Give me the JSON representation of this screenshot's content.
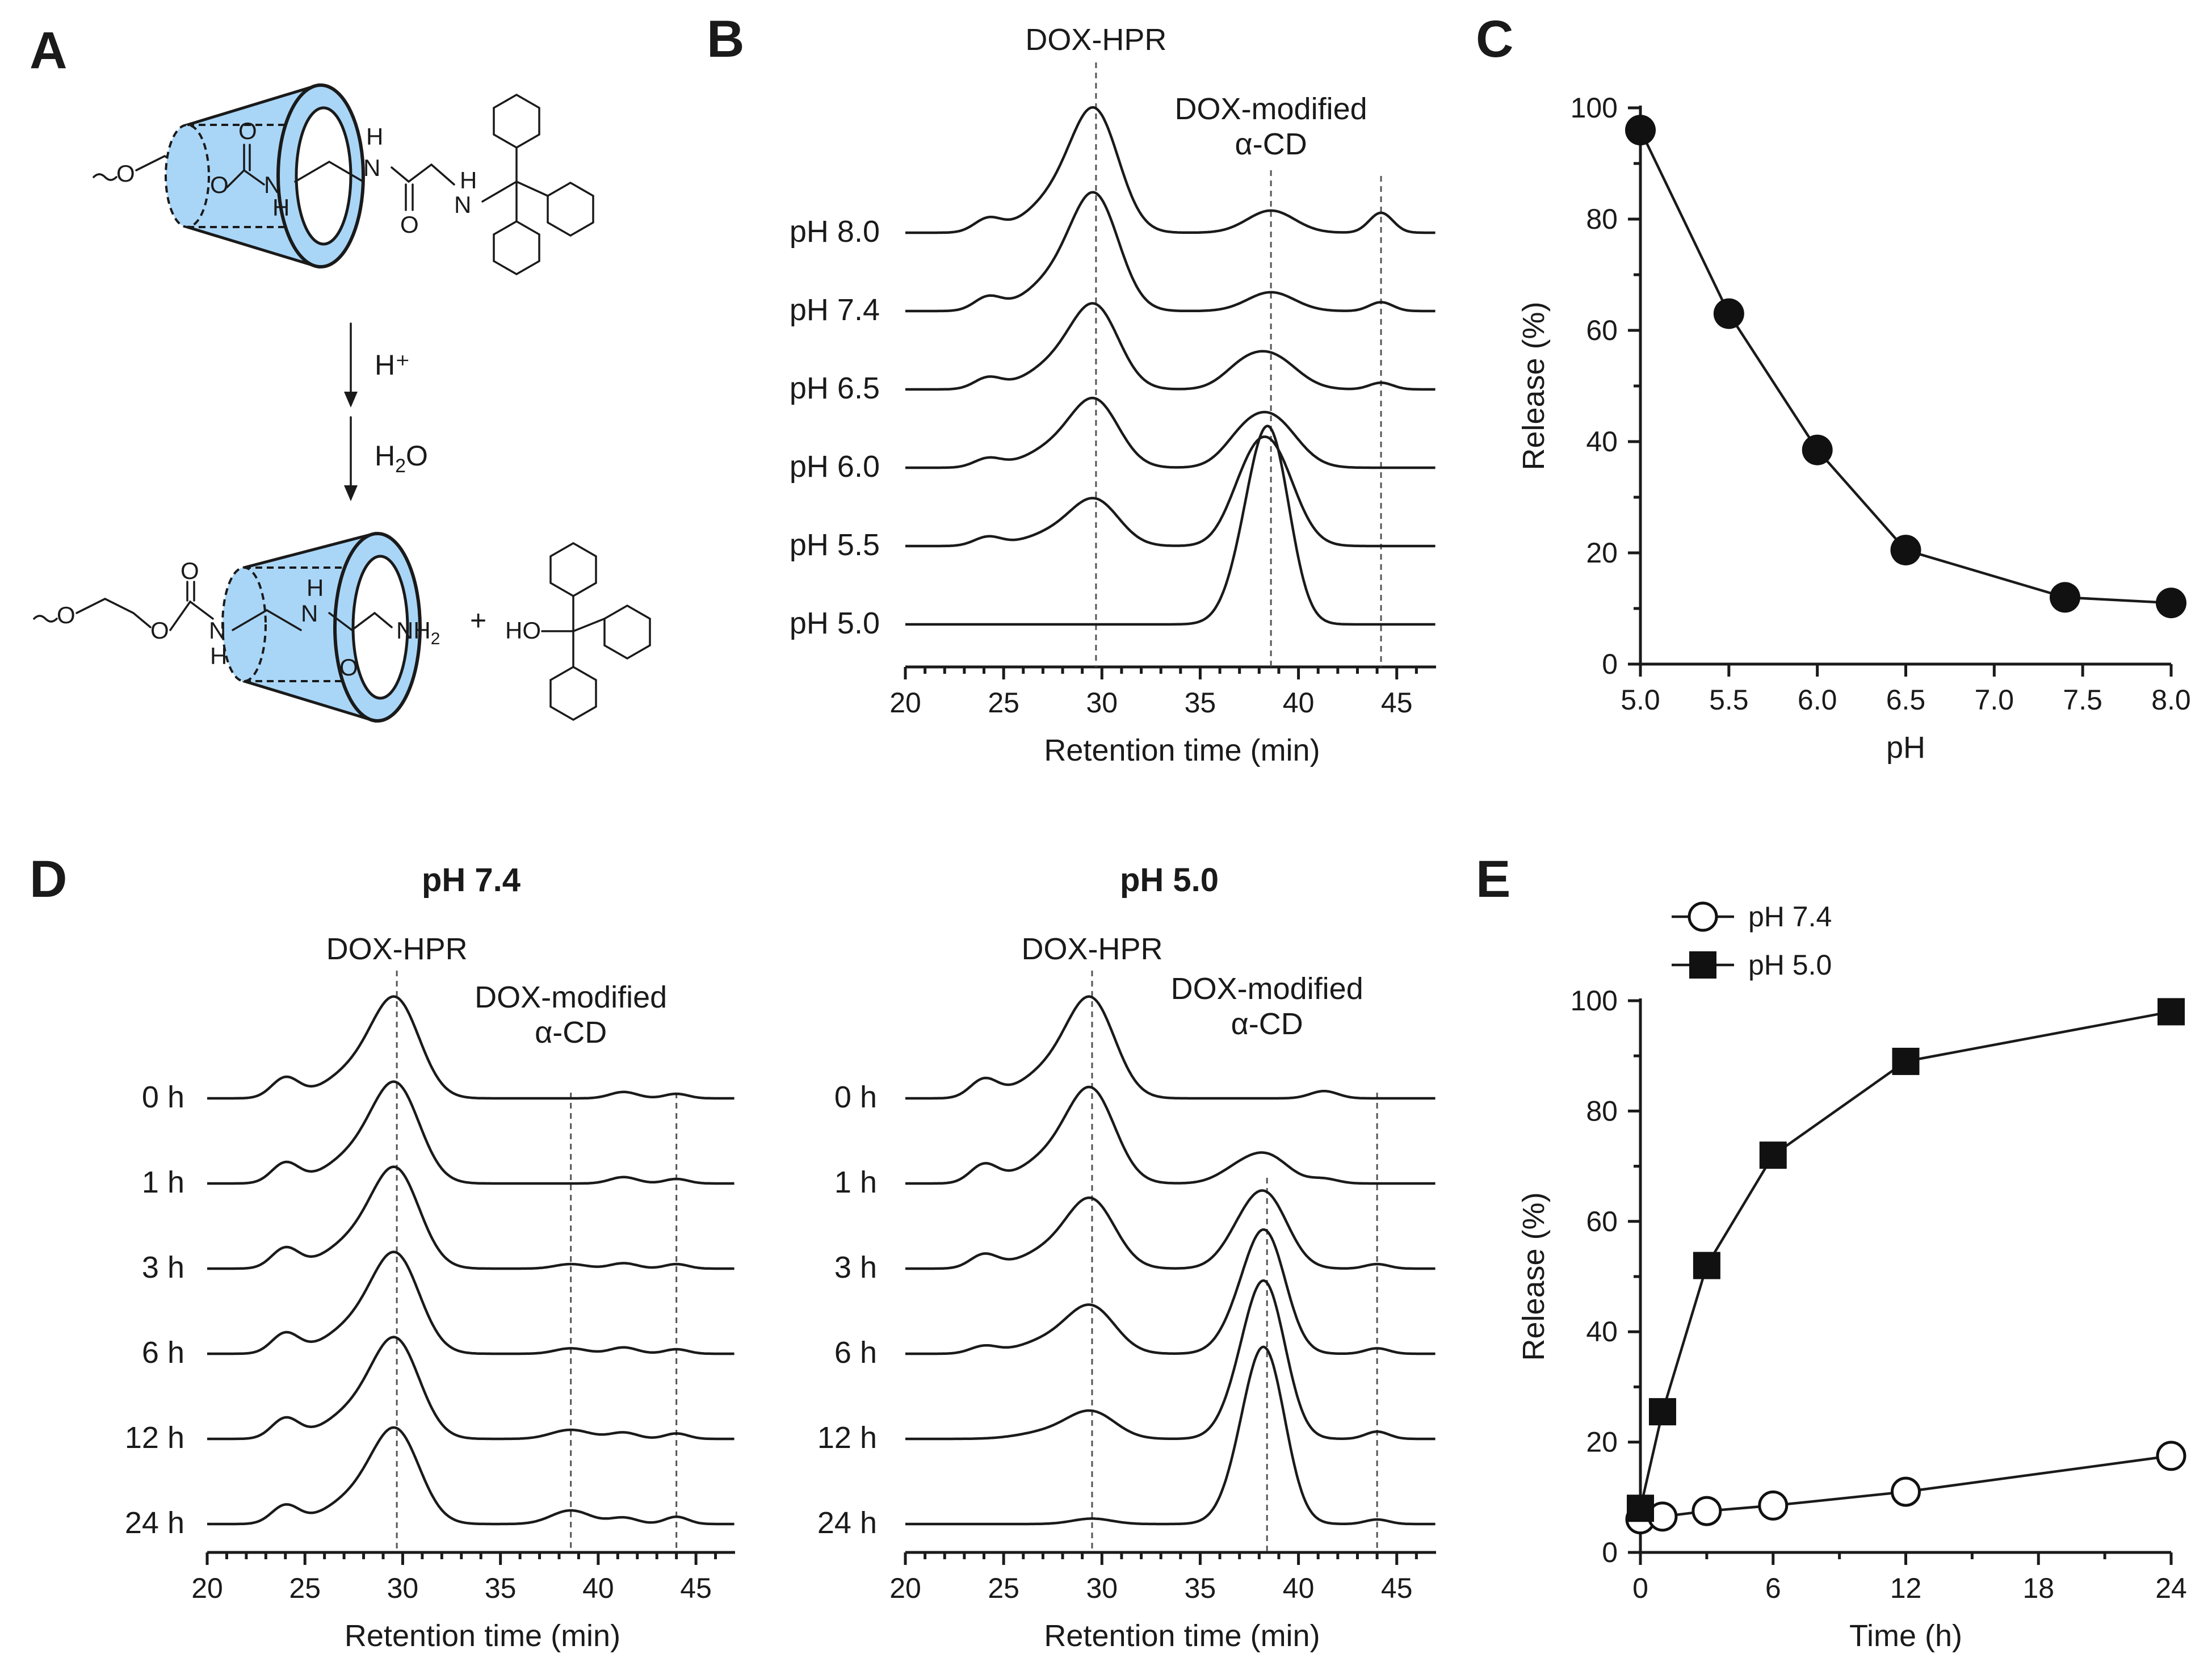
{
  "panels": {
    "A": {
      "letter": "A",
      "reagent1": "H⁺",
      "reagent2_main": "H",
      "reagent2_sub": "2",
      "reagent2_end": "O",
      "plus": "+",
      "top_molecule": {
        "atoms": [
          "O",
          "O",
          "O",
          "N",
          "H",
          "H",
          "N",
          "O",
          "N",
          "H"
        ]
      },
      "bottom_molecule": {
        "atoms": [
          "O",
          "O",
          "O",
          "N",
          "H",
          "N",
          "H",
          "O",
          "N",
          "H",
          "2"
        ]
      },
      "trityl_alcohol": {
        "label": "HO"
      }
    },
    "B": {
      "letter": "B"
    },
    "C": {
      "letter": "C"
    },
    "D": {
      "letter": "D",
      "title_left": "pH 7.4",
      "title_right": "pH 5.0"
    },
    "E": {
      "letter": "E"
    }
  },
  "chart_data": [
    {
      "id": "B",
      "type": "line",
      "subtype": "chromatogram-stack",
      "xlabel": "Retention time (min)",
      "xlim": [
        20,
        47
      ],
      "xticks": [
        20,
        25,
        30,
        35,
        40,
        45
      ],
      "peak_labels": [
        {
          "text": "DOX-HPR",
          "x": 29.7
        },
        {
          "text": "DOX-modified",
          "text2": "α-CD",
          "x": 38.6
        }
      ],
      "ref_lines": [
        29.7,
        38.6,
        44.2
      ],
      "traces": [
        {
          "name": "pH 8.0",
          "peaks": [
            [
              24.2,
              0.12,
              0.7
            ],
            [
              29.7,
              1.0,
              1.2
            ],
            [
              27.7,
              0.3,
              1.5
            ],
            [
              38.6,
              0.2,
              1.2
            ],
            [
              44.2,
              0.18,
              0.6
            ]
          ]
        },
        {
          "name": "pH 7.4",
          "peaks": [
            [
              24.2,
              0.12,
              0.7
            ],
            [
              29.7,
              0.95,
              1.2
            ],
            [
              27.7,
              0.28,
              1.5
            ],
            [
              38.6,
              0.17,
              1.2
            ],
            [
              44.2,
              0.08,
              0.6
            ]
          ]
        },
        {
          "name": "pH 6.5",
          "peaks": [
            [
              24.2,
              0.1,
              0.7
            ],
            [
              29.7,
              0.68,
              1.2
            ],
            [
              27.7,
              0.22,
              1.5
            ],
            [
              38.6,
              0.3,
              1.3
            ],
            [
              37.0,
              0.12,
              1.0
            ],
            [
              44.2,
              0.06,
              0.6
            ]
          ]
        },
        {
          "name": "pH 6.0",
          "peaks": [
            [
              24.2,
              0.08,
              0.7
            ],
            [
              29.7,
              0.55,
              1.2
            ],
            [
              27.7,
              0.18,
              1.5
            ],
            [
              38.6,
              0.45,
              1.3
            ],
            [
              37.0,
              0.15,
              1.0
            ]
          ]
        },
        {
          "name": "pH 5.5",
          "peaks": [
            [
              24.2,
              0.08,
              0.7
            ],
            [
              29.7,
              0.38,
              1.2
            ],
            [
              27.7,
              0.12,
              1.5
            ],
            [
              38.6,
              0.85,
              1.2
            ],
            [
              37.2,
              0.3,
              1.0
            ]
          ]
        },
        {
          "name": "pH 5.0",
          "peaks": [
            [
              38.6,
              1.55,
              1.0
            ],
            [
              37.4,
              0.45,
              1.0
            ]
          ]
        }
      ]
    },
    {
      "id": "C",
      "type": "line",
      "xlabel": "pH",
      "ylabel": "Release (%)",
      "xlim": [
        5.0,
        8.0
      ],
      "ylim": [
        0,
        100
      ],
      "xticks": [
        5.0,
        5.5,
        6.0,
        6.5,
        7.0,
        7.5,
        8.0
      ],
      "xtick_labels": [
        "5.0",
        "5.5",
        "6.0",
        "6.5",
        "7.0",
        "7.5",
        "8.0"
      ],
      "yticks": [
        0,
        20,
        40,
        60,
        80,
        100
      ],
      "series": [
        {
          "name": "Release",
          "x": [
            5.0,
            5.5,
            6.0,
            6.5,
            7.4,
            8.0
          ],
          "values": [
            96,
            63,
            38.5,
            20.5,
            12,
            11
          ]
        }
      ]
    },
    {
      "id": "D-left",
      "type": "line",
      "subtype": "chromatogram-stack",
      "title": "pH 7.4",
      "xlabel": "Retention time (min)",
      "xlim": [
        20,
        47
      ],
      "xticks": [
        20,
        25,
        30,
        35,
        40,
        45
      ],
      "peak_labels": [
        {
          "text": "DOX-HPR",
          "x": 29.7
        },
        {
          "text": "DOX-modified",
          "text2": "α-CD",
          "x": 38.6
        }
      ],
      "ref_lines": [
        29.7,
        38.6,
        44.0
      ],
      "traces": [
        {
          "name": "0 h",
          "peaks": [
            [
              24.0,
              0.22,
              0.7
            ],
            [
              29.7,
              1.0,
              1.2
            ],
            [
              27.6,
              0.3,
              1.5
            ],
            [
              41.3,
              0.07,
              0.7
            ],
            [
              44.0,
              0.05,
              0.6
            ]
          ]
        },
        {
          "name": "1 h",
          "peaks": [
            [
              24.0,
              0.22,
              0.7
            ],
            [
              29.7,
              1.0,
              1.2
            ],
            [
              27.6,
              0.3,
              1.5
            ],
            [
              41.3,
              0.07,
              0.7
            ],
            [
              44.0,
              0.05,
              0.6
            ]
          ]
        },
        {
          "name": "3 h",
          "peaks": [
            [
              24.0,
              0.22,
              0.7
            ],
            [
              29.7,
              1.0,
              1.2
            ],
            [
              27.6,
              0.3,
              1.5
            ],
            [
              38.6,
              0.05,
              0.8
            ],
            [
              41.3,
              0.06,
              0.7
            ],
            [
              44.0,
              0.05,
              0.6
            ]
          ]
        },
        {
          "name": "6 h",
          "peaks": [
            [
              24.0,
              0.22,
              0.7
            ],
            [
              29.7,
              1.0,
              1.2
            ],
            [
              27.6,
              0.3,
              1.5
            ],
            [
              38.6,
              0.06,
              0.8
            ],
            [
              41.3,
              0.07,
              0.7
            ],
            [
              44.0,
              0.05,
              0.6
            ]
          ]
        },
        {
          "name": "12 h",
          "peaks": [
            [
              24.0,
              0.22,
              0.7
            ],
            [
              29.7,
              1.0,
              1.2
            ],
            [
              27.6,
              0.3,
              1.5
            ],
            [
              38.6,
              0.1,
              1.0
            ],
            [
              41.3,
              0.07,
              0.7
            ],
            [
              44.0,
              0.06,
              0.6
            ]
          ]
        },
        {
          "name": "24 h",
          "peaks": [
            [
              24.0,
              0.2,
              0.7
            ],
            [
              29.7,
              0.95,
              1.2
            ],
            [
              27.6,
              0.28,
              1.5
            ],
            [
              38.6,
              0.15,
              1.0
            ],
            [
              41.3,
              0.07,
              0.7
            ],
            [
              44.0,
              0.08,
              0.6
            ]
          ]
        }
      ]
    },
    {
      "id": "D-right",
      "type": "line",
      "subtype": "chromatogram-stack",
      "title": "pH 5.0",
      "xlabel": "Retention time (min)",
      "xlim": [
        20,
        47
      ],
      "xticks": [
        20,
        25,
        30,
        35,
        40,
        45
      ],
      "peak_labels": [
        {
          "text": "DOX-HPR",
          "x": 29.5
        },
        {
          "text": "DOX-modified",
          "text2": "α-CD",
          "x": 38.4
        }
      ],
      "ref_lines": [
        29.5,
        38.4,
        44.0
      ],
      "traces": [
        {
          "name": "0 h",
          "peaks": [
            [
              24.0,
              0.2,
              0.7
            ],
            [
              29.5,
              1.0,
              1.2
            ],
            [
              27.4,
              0.3,
              1.5
            ],
            [
              41.3,
              0.08,
              0.7
            ]
          ]
        },
        {
          "name": "1 h",
          "peaks": [
            [
              24.0,
              0.2,
              0.7
            ],
            [
              29.5,
              0.95,
              1.2
            ],
            [
              27.4,
              0.28,
              1.5
            ],
            [
              38.4,
              0.3,
              1.1
            ],
            [
              36.8,
              0.12,
              1.0
            ],
            [
              41.3,
              0.05,
              0.7
            ]
          ]
        },
        {
          "name": "3 h",
          "peaks": [
            [
              24.0,
              0.15,
              0.7
            ],
            [
              29.5,
              0.7,
              1.2
            ],
            [
              27.4,
              0.2,
              1.5
            ],
            [
              38.4,
              0.75,
              1.1
            ],
            [
              37.0,
              0.25,
              1.0
            ],
            [
              44.0,
              0.05,
              0.6
            ]
          ]
        },
        {
          "name": "6 h",
          "peaks": [
            [
              24.0,
              0.08,
              0.7
            ],
            [
              29.5,
              0.48,
              1.2
            ],
            [
              27.4,
              0.15,
              1.5
            ],
            [
              38.4,
              1.2,
              1.0
            ],
            [
              37.1,
              0.35,
              1.0
            ],
            [
              44.0,
              0.06,
              0.6
            ]
          ]
        },
        {
          "name": "12 h",
          "peaks": [
            [
              29.5,
              0.28,
              1.2
            ],
            [
              27.4,
              0.08,
              1.5
            ],
            [
              38.4,
              1.5,
              1.0
            ],
            [
              37.2,
              0.45,
              1.0
            ],
            [
              44.0,
              0.08,
              0.6
            ]
          ]
        },
        {
          "name": "24 h",
          "peaks": [
            [
              29.5,
              0.06,
              1.0
            ],
            [
              38.4,
              1.65,
              1.0
            ],
            [
              37.3,
              0.5,
              1.0
            ],
            [
              44.0,
              0.05,
              0.6
            ]
          ]
        }
      ]
    },
    {
      "id": "E",
      "type": "line",
      "xlabel": "Time (h)",
      "ylabel": "Release (%)",
      "xlim": [
        0,
        24
      ],
      "ylim": [
        0,
        100
      ],
      "xticks": [
        0,
        6,
        12,
        18,
        24
      ],
      "yticks": [
        0,
        20,
        40,
        60,
        80,
        100
      ],
      "series": [
        {
          "name": "pH 7.4",
          "marker": "circle-open",
          "x": [
            0,
            1,
            3,
            6,
            12,
            24
          ],
          "values": [
            6,
            6.5,
            7.5,
            8.5,
            11,
            17.5
          ]
        },
        {
          "name": "pH 5.0",
          "marker": "square-filled",
          "x": [
            0,
            1,
            3,
            6,
            12,
            24
          ],
          "values": [
            8,
            25.5,
            52,
            72,
            89,
            98
          ]
        }
      ],
      "legend": "top-left"
    }
  ]
}
